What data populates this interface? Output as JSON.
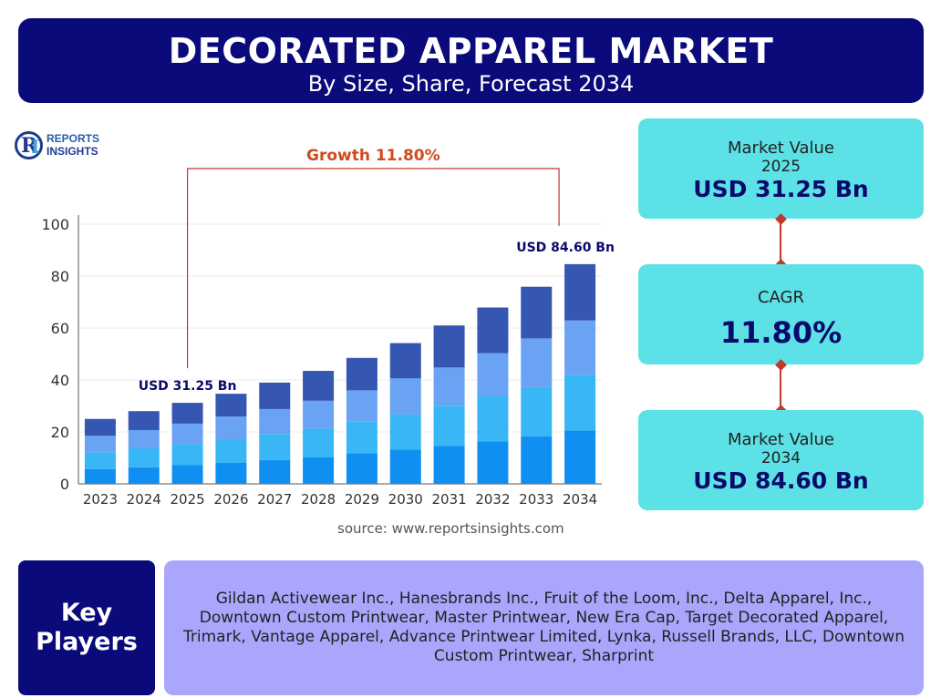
{
  "header": {
    "title": "DECORATED APPAREL MARKET",
    "subtitle": "By Size, Share, Forecast 2034"
  },
  "logo": {
    "line1": "REPORTS",
    "line2": "INSIGHTS",
    "mark": "RI"
  },
  "chart_data": {
    "type": "bar",
    "stacked": true,
    "categories": [
      "2023",
      "2024",
      "2025",
      "2026",
      "2027",
      "2028",
      "2029",
      "2030",
      "2031",
      "2032",
      "2033",
      "2034"
    ],
    "series": [
      {
        "color": "#0f8ff2",
        "values": [
          5.7,
          6.4,
          7.2,
          8.2,
          9.2,
          10.3,
          11.8,
          13.2,
          14.6,
          16.3,
          18.3,
          20.6
        ]
      },
      {
        "color": "#38b6f5",
        "values": [
          6.5,
          7.3,
          8.1,
          9.0,
          10.0,
          11.0,
          12.3,
          13.6,
          15.5,
          17.4,
          19.0,
          21.4
        ]
      },
      {
        "color": "#6aa3f3",
        "values": [
          6.3,
          7.0,
          7.9,
          8.7,
          9.6,
          10.7,
          11.9,
          13.8,
          14.7,
          16.6,
          18.7,
          20.9
        ]
      },
      {
        "color": "#3556b1",
        "values": [
          6.5,
          7.3,
          8.0,
          8.8,
          10.2,
          11.5,
          12.5,
          13.6,
          16.2,
          17.6,
          19.9,
          21.7
        ]
      }
    ],
    "ylim": [
      0,
      100
    ],
    "yticks": [
      0,
      20,
      40,
      60,
      80,
      100
    ],
    "annotations": {
      "growth_label": "Growth 11.80%",
      "start_label": "USD 31.25 Bn",
      "end_label": "USD 84.60 Bn",
      "start_category": "2025",
      "end_category": "2034"
    },
    "grid": true
  },
  "source": "source: www.reportsinsights.com",
  "cards": {
    "value2025": {
      "label": "Market Value",
      "year": "2025",
      "value": "USD 31.25 Bn"
    },
    "cagr": {
      "label": "CAGR",
      "value": "11.80%"
    },
    "value2034": {
      "label": "Market Value",
      "year": "2034",
      "value": "USD 84.60 Bn"
    }
  },
  "key_players": {
    "title_line1": "Key",
    "title_line2": "Players",
    "text": "Gildan Activewear Inc., Hanesbrands Inc., Fruit of the Loom, Inc., Delta Apparel, Inc., Downtown Custom Printwear, Master Printwear, New Era Cap, Target Decorated Apparel, Trimark, Vantage Apparel, Advance Printwear Limited, Lynka, Russell Brands, LLC, Downtown Custom Printwear, Sharprint"
  },
  "colors": {
    "header_bg": "#0a0a7a",
    "card_bg": "#5ce1e6",
    "growth_line": "#c0392b",
    "players_bg": "#a9a6fb"
  }
}
